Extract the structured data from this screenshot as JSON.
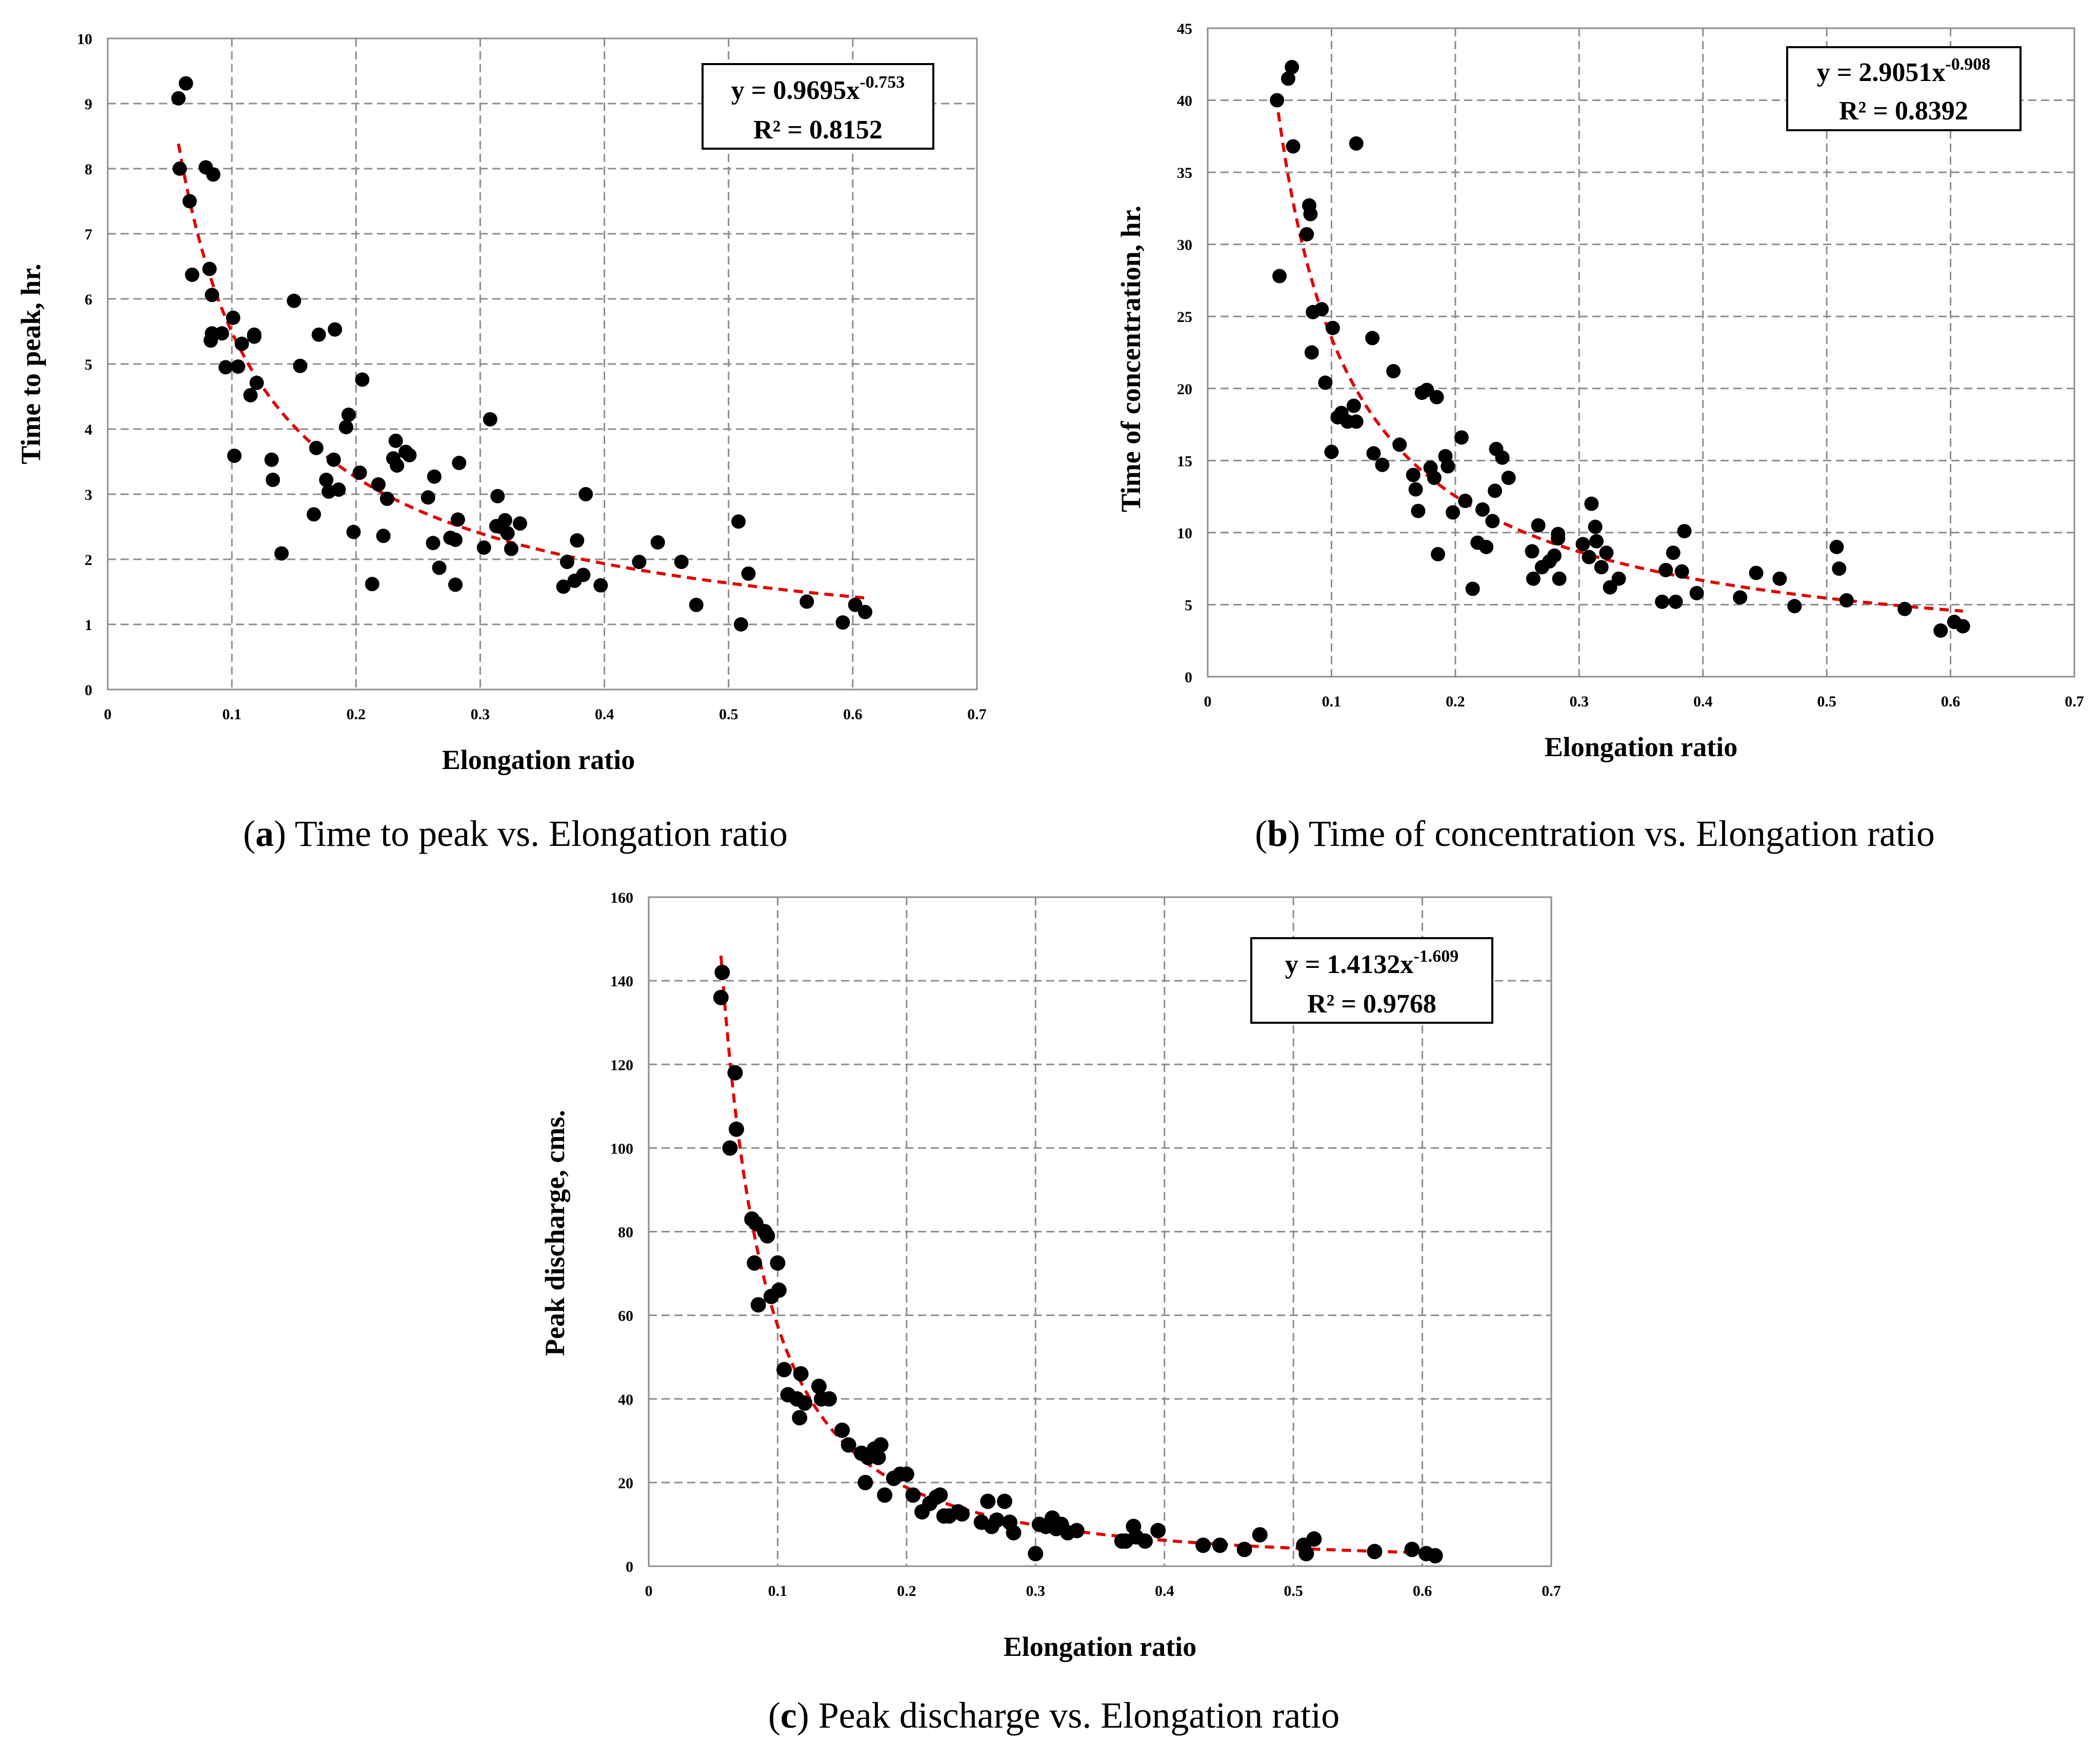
{
  "chart_data": [
    {
      "type": "scatter",
      "panel": "a",
      "caption_letter": "a",
      "caption_text": "Time to peak vs. Elongation ratio",
      "xlabel": "Elongation ratio",
      "ylabel": "Time to peak, hr.",
      "xlim": [
        0,
        0.7
      ],
      "ylim": [
        0,
        10
      ],
      "xticks": [
        "0",
        "0.1",
        "0.2",
        "0.3",
        "0.4",
        "0.5",
        "0.6",
        "0.7"
      ],
      "xtick_values": [
        0,
        0.1,
        0.2,
        0.3,
        0.4,
        0.5,
        0.6,
        0.7
      ],
      "yticks": [
        "0",
        "1",
        "2",
        "3",
        "4",
        "5",
        "6",
        "7",
        "8",
        "9",
        "10"
      ],
      "ytick_values": [
        0,
        1,
        2,
        3,
        4,
        5,
        6,
        7,
        8,
        9,
        10
      ],
      "grid": true,
      "equation_main": "y = 0.9695x",
      "equation_exponent": "-0.753",
      "r_squared": "R² = 0.8152",
      "equation_position": "top-right",
      "fit": {
        "a": 0.9695,
        "b": -0.753,
        "x_range": [
          0.057,
          0.61
        ]
      },
      "x": [
        0.057,
        0.058,
        0.063,
        0.066,
        0.068,
        0.079,
        0.082,
        0.084,
        0.085,
        0.084,
        0.083,
        0.092,
        0.095,
        0.101,
        0.102,
        0.105,
        0.108,
        0.115,
        0.118,
        0.118,
        0.12,
        0.132,
        0.133,
        0.14,
        0.15,
        0.155,
        0.166,
        0.168,
        0.17,
        0.176,
        0.178,
        0.182,
        0.183,
        0.186,
        0.192,
        0.194,
        0.198,
        0.203,
        0.205,
        0.213,
        0.218,
        0.222,
        0.225,
        0.23,
        0.232,
        0.233,
        0.24,
        0.243,
        0.258,
        0.262,
        0.263,
        0.267,
        0.276,
        0.28,
        0.28,
        0.282,
        0.283,
        0.303,
        0.308,
        0.313,
        0.314,
        0.316,
        0.32,
        0.322,
        0.325,
        0.332,
        0.367,
        0.37,
        0.376,
        0.378,
        0.383,
        0.385,
        0.397,
        0.428,
        0.443,
        0.462,
        0.474,
        0.508,
        0.51,
        0.516,
        0.563,
        0.592,
        0.602,
        0.61
      ],
      "y": [
        9.08,
        8.0,
        9.31,
        7.5,
        6.37,
        8.02,
        6.46,
        6.06,
        7.91,
        5.47,
        5.36,
        5.47,
        4.95,
        5.71,
        3.59,
        4.96,
        5.31,
        4.52,
        5.42,
        5.45,
        4.71,
        3.53,
        3.22,
        2.09,
        5.97,
        4.97,
        2.69,
        3.71,
        5.45,
        3.22,
        3.04,
        3.53,
        5.53,
        3.07,
        4.03,
        4.22,
        2.42,
        3.33,
        4.76,
        1.62,
        3.15,
        2.36,
        2.93,
        3.55,
        3.82,
        3.44,
        3.65,
        3.6,
        2.95,
        2.25,
        3.27,
        1.87,
        2.33,
        1.61,
        2.3,
        2.61,
        3.48,
        2.18,
        4.15,
        2.51,
        2.97,
        2.5,
        2.6,
        2.4,
        2.16,
        2.55,
        1.58,
        1.96,
        1.67,
        2.29,
        1.76,
        3.0,
        1.6,
        1.96,
        2.26,
        1.96,
        1.3,
        2.58,
        1.0,
        1.78,
        1.35,
        1.03,
        1.3,
        1.19
      ]
    },
    {
      "type": "scatter",
      "panel": "b",
      "caption_letter": "b",
      "caption_text": "Time of concentration vs. Elongation ratio",
      "xlabel": "Elongation ratio",
      "ylabel": "Time of concentration, hr.",
      "xlim": [
        0,
        0.7
      ],
      "ylim": [
        0,
        45
      ],
      "xticks": [
        "0",
        "0.1",
        "0.2",
        "0.3",
        "0.4",
        "0.5",
        "0.6",
        "0.7"
      ],
      "xtick_values": [
        0,
        0.1,
        0.2,
        0.3,
        0.4,
        0.5,
        0.6,
        0.7
      ],
      "yticks": [
        "0",
        "5",
        "10",
        "15",
        "20",
        "25",
        "30",
        "35",
        "40",
        "45"
      ],
      "ytick_values": [
        0,
        5,
        10,
        15,
        20,
        25,
        30,
        35,
        40,
        45
      ],
      "grid": true,
      "equation_main": "y = 2.9051x",
      "equation_exponent": "-0.908",
      "r_squared": "R² = 0.8392",
      "equation_position": "top-right",
      "fit": {
        "a": 2.9051,
        "b": -0.908,
        "x_range": [
          0.057,
          0.61
        ]
      },
      "x": [
        0.056,
        0.058,
        0.065,
        0.068,
        0.069,
        0.08,
        0.082,
        0.083,
        0.084,
        0.085,
        0.092,
        0.095,
        0.1,
        0.101,
        0.105,
        0.108,
        0.113,
        0.118,
        0.12,
        0.12,
        0.133,
        0.134,
        0.141,
        0.15,
        0.155,
        0.166,
        0.168,
        0.17,
        0.173,
        0.177,
        0.18,
        0.183,
        0.185,
        0.186,
        0.192,
        0.194,
        0.198,
        0.205,
        0.208,
        0.214,
        0.218,
        0.222,
        0.225,
        0.23,
        0.232,
        0.233,
        0.238,
        0.243,
        0.262,
        0.263,
        0.267,
        0.27,
        0.276,
        0.28,
        0.283,
        0.283,
        0.284,
        0.303,
        0.308,
        0.31,
        0.313,
        0.314,
        0.318,
        0.322,
        0.325,
        0.332,
        0.367,
        0.37,
        0.376,
        0.378,
        0.383,
        0.385,
        0.395,
        0.43,
        0.443,
        0.462,
        0.474,
        0.508,
        0.51,
        0.516,
        0.563,
        0.592,
        0.603,
        0.61
      ],
      "y": [
        40.0,
        27.8,
        41.5,
        42.3,
        36.8,
        30.7,
        32.7,
        32.1,
        22.5,
        25.3,
        25.5,
        20.4,
        15.6,
        24.2,
        18.0,
        18.3,
        17.7,
        18.8,
        37.0,
        17.7,
        23.5,
        15.5,
        14.7,
        21.2,
        16.1,
        14.0,
        13.0,
        11.5,
        19.7,
        19.9,
        14.5,
        13.8,
        19.4,
        8.5,
        15.3,
        14.6,
        11.4,
        16.6,
        12.2,
        6.1,
        9.3,
        11.6,
        9.0,
        10.8,
        12.9,
        15.8,
        15.2,
        13.8,
        8.7,
        6.8,
        10.5,
        7.6,
        8.0,
        8.4,
        9.6,
        9.9,
        6.8,
        9.2,
        8.3,
        12.0,
        10.4,
        9.4,
        7.6,
        8.6,
        6.2,
        6.8,
        5.2,
        7.4,
        8.6,
        5.2,
        7.3,
        10.1,
        5.8,
        5.5,
        7.2,
        6.8,
        4.9,
        9.0,
        7.5,
        5.3,
        4.7,
        3.2,
        3.8,
        3.5
      ]
    },
    {
      "type": "scatter",
      "panel": "c",
      "caption_letter": "c",
      "caption_text": "Peak discharge vs. Elongation ratio",
      "xlabel": "Elongation ratio",
      "ylabel": "Peak discharge, cms.",
      "xlim": [
        0,
        0.7
      ],
      "ylim": [
        0,
        160
      ],
      "xticks": [
        "0",
        "0.1",
        "0.2",
        "0.3",
        "0.4",
        "0.5",
        "0.6",
        "0.7"
      ],
      "xtick_values": [
        0,
        0.1,
        0.2,
        0.3,
        0.4,
        0.5,
        0.6,
        0.7
      ],
      "yticks": [
        "0",
        "20",
        "40",
        "60",
        "80",
        "100",
        "120",
        "140",
        "160"
      ],
      "ytick_values": [
        0,
        20,
        40,
        60,
        80,
        100,
        120,
        140,
        160
      ],
      "grid": true,
      "equation_main": "y = 1.4132x",
      "equation_exponent": "-1.609",
      "r_squared": "R² = 0.9768",
      "equation_position": "top-right",
      "fit": {
        "a": 1.4132,
        "b": -1.609,
        "x_range": [
          0.056,
          0.61
        ]
      },
      "x": [
        0.056,
        0.057,
        0.063,
        0.067,
        0.068,
        0.08,
        0.082,
        0.085,
        0.083,
        0.09,
        0.092,
        0.095,
        0.101,
        0.1,
        0.105,
        0.108,
        0.115,
        0.117,
        0.118,
        0.121,
        0.132,
        0.134,
        0.14,
        0.15,
        0.155,
        0.165,
        0.168,
        0.17,
        0.175,
        0.178,
        0.18,
        0.183,
        0.19,
        0.195,
        0.2,
        0.205,
        0.212,
        0.218,
        0.223,
        0.226,
        0.229,
        0.233,
        0.24,
        0.243,
        0.258,
        0.263,
        0.266,
        0.27,
        0.276,
        0.28,
        0.283,
        0.3,
        0.303,
        0.308,
        0.313,
        0.316,
        0.32,
        0.325,
        0.332,
        0.367,
        0.37,
        0.376,
        0.378,
        0.385,
        0.395,
        0.43,
        0.443,
        0.462,
        0.474,
        0.508,
        0.51,
        0.516,
        0.563,
        0.592,
        0.603,
        0.61
      ],
      "y": [
        136,
        142,
        100,
        118,
        104.5,
        83,
        72.5,
        62.5,
        82,
        80,
        79,
        64.5,
        66,
        72.5,
        47,
        41,
        40,
        35.5,
        46,
        39,
        43,
        40,
        40,
        32.5,
        29,
        27,
        20,
        26,
        28,
        26,
        29,
        17,
        21,
        22,
        22,
        17,
        13,
        15,
        16.5,
        17,
        12,
        12,
        13,
        12.5,
        10.5,
        15.5,
        9.5,
        11,
        15.5,
        10.5,
        8,
        3,
        10,
        9.5,
        11.5,
        9,
        10,
        8,
        8.5,
        6,
        6,
        9.5,
        7,
        6,
        8.5,
        5,
        5,
        4,
        7.5,
        5,
        3,
        6.5,
        3.5,
        4,
        3,
        2.5
      ]
    }
  ]
}
